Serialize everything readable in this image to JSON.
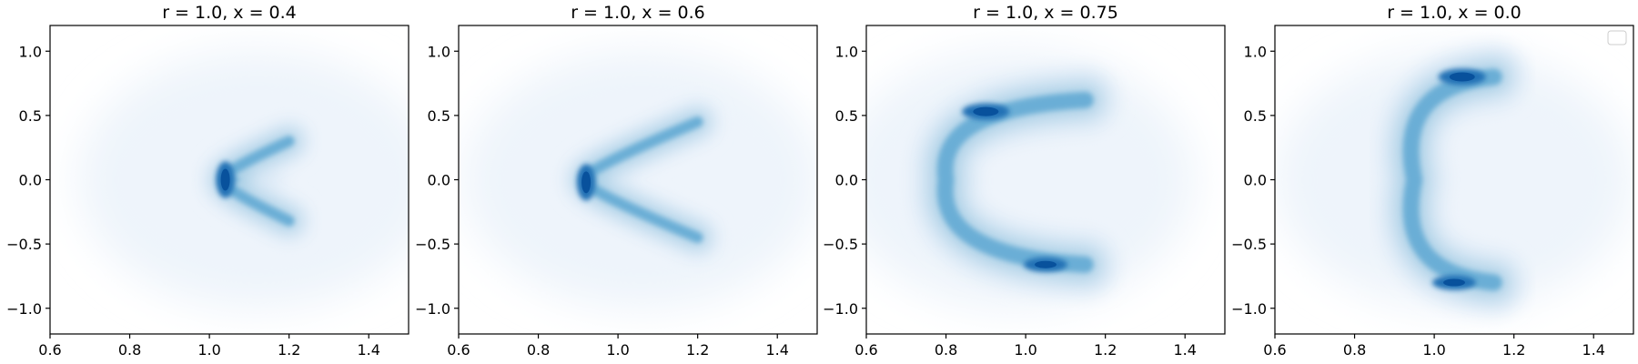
{
  "chart_data": [
    {
      "type": "contour",
      "title": "r = 1.0, x = 0.4",
      "xlim": [
        0.6,
        1.5
      ],
      "ylim": [
        -1.2,
        1.2
      ],
      "xticks": [
        0.6,
        0.8,
        1.0,
        1.2,
        1.4
      ],
      "yticks": [
        -1.0,
        -0.5,
        0.0,
        0.5,
        1.0
      ],
      "colormap": "Blues",
      "legend": false,
      "density_shape": {
        "kind": "chevron",
        "vertex": [
          1.04,
          0.0
        ],
        "upper_tip": [
          1.2,
          0.3
        ],
        "lower_tip": [
          1.2,
          -0.32
        ],
        "peak": [
          1.04,
          0.0
        ]
      }
    },
    {
      "type": "contour",
      "title": "r = 1.0, x = 0.6",
      "xlim": [
        0.6,
        1.5
      ],
      "ylim": [
        -1.2,
        1.2
      ],
      "xticks": [
        0.6,
        0.8,
        1.0,
        1.2,
        1.4
      ],
      "yticks": [
        -1.0,
        -0.5,
        0.0,
        0.5,
        1.0
      ],
      "colormap": "Blues",
      "legend": false,
      "density_shape": {
        "kind": "chevron",
        "vertex": [
          0.92,
          0.0
        ],
        "upper_tip": [
          1.2,
          0.45
        ],
        "lower_tip": [
          1.2,
          -0.45
        ],
        "peak": [
          0.92,
          -0.02
        ]
      }
    },
    {
      "type": "contour",
      "title": "r = 1.0, x = 0.75",
      "xlim": [
        0.6,
        1.5
      ],
      "ylim": [
        -1.2,
        1.2
      ],
      "xticks": [
        0.6,
        0.8,
        1.0,
        1.2,
        1.4
      ],
      "yticks": [
        -1.0,
        -0.5,
        0.0,
        0.5,
        1.0
      ],
      "colormap": "Blues",
      "legend": false,
      "density_shape": {
        "kind": "c-shape",
        "vertex": [
          0.8,
          0.0
        ],
        "upper_tip": [
          1.15,
          0.62
        ],
        "lower_tip": [
          1.15,
          -0.66
        ],
        "peak": [
          0.9,
          0.53
        ]
      }
    },
    {
      "type": "contour",
      "title": "r = 1.0, x = 0.0",
      "xlim": [
        0.6,
        1.5
      ],
      "ylim": [
        -1.2,
        1.2
      ],
      "xticks": [
        0.6,
        0.8,
        1.0,
        1.2,
        1.4
      ],
      "yticks": [
        -1.0,
        -0.5,
        0.0,
        0.5,
        1.0
      ],
      "colormap": "Blues",
      "legend": true,
      "legend_loc": "upper right",
      "density_shape": {
        "kind": "bracket",
        "vertex": [
          0.95,
          0.0
        ],
        "upper_tip": [
          1.15,
          0.8
        ],
        "lower_tip": [
          1.15,
          -0.8
        ],
        "peak": [
          1.07,
          0.8
        ]
      }
    }
  ]
}
